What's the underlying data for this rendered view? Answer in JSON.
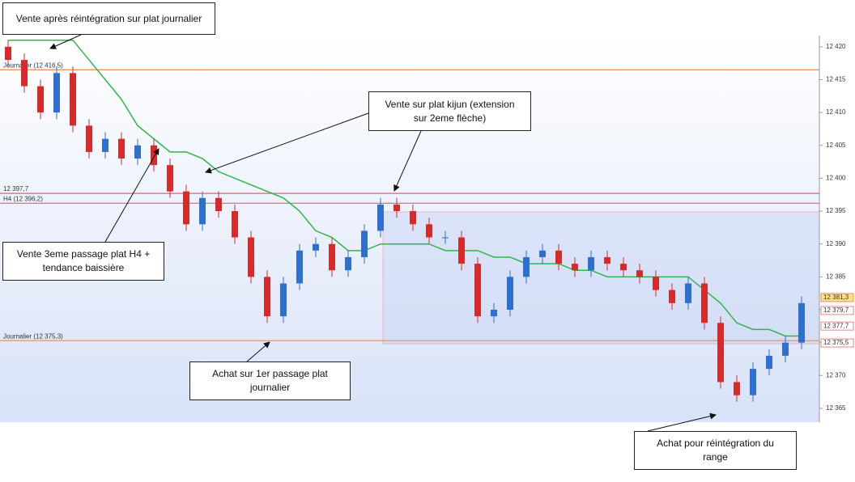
{
  "chart_data": {
    "type": "candlestick",
    "up_color": "#2f6fd0",
    "down_color": "#d62b2b",
    "ylim": [
      12362.9,
      12421.7
    ],
    "yticks": [
      {
        "value": 12365,
        "label": "12 365"
      },
      {
        "value": 12370,
        "label": "12 370"
      },
      {
        "value": 12375,
        "label": "12 375"
      },
      {
        "value": 12380,
        "label": "12 380"
      },
      {
        "value": 12385,
        "label": "12 385"
      },
      {
        "value": 12390,
        "label": "12 390"
      },
      {
        "value": 12395,
        "label": "12 395"
      },
      {
        "value": 12400,
        "label": "12 400"
      },
      {
        "value": 12405,
        "label": "12 405"
      },
      {
        "value": 12410,
        "label": "12 410"
      },
      {
        "value": 12415,
        "label": "12 415"
      },
      {
        "value": 12420,
        "label": "12 420"
      }
    ],
    "open": [
      12420,
      12418,
      12414,
      12410,
      12416,
      12408,
      12404,
      12406,
      12403,
      12405,
      12402,
      12398,
      12393,
      12397,
      12395,
      12391,
      12385,
      12379,
      12384,
      12389,
      12390,
      12386,
      12388,
      12392,
      12396,
      12395,
      12393,
      12391,
      12391,
      12387,
      12379,
      12380,
      12385,
      12388,
      12389,
      12387,
      12386,
      12388,
      12387,
      12386,
      12385,
      12383,
      12381,
      12384,
      12378,
      12369,
      12367,
      12371,
      12373,
      12375
    ],
    "high": [
      12421,
      12419,
      12415,
      12417,
      12417,
      12409,
      12407,
      12407,
      12406,
      12406,
      12403,
      12399,
      12398,
      12398,
      12396,
      12392,
      12386,
      12385,
      12390,
      12391,
      12391,
      12389,
      12393,
      12397,
      12397,
      12396,
      12394,
      12392,
      12392,
      12388,
      12381,
      12386,
      12389,
      12390,
      12390,
      12388,
      12389,
      12389,
      12388,
      12387,
      12386,
      12384,
      12385,
      12385,
      12379,
      12370,
      12372,
      12374,
      12376,
      12382
    ],
    "low": [
      12417,
      12413,
      12409,
      12409,
      12407,
      12403,
      12403,
      12402,
      12402,
      12401,
      12397,
      12392,
      12392,
      12394,
      12390,
      12384,
      12378,
      12378,
      12383,
      12388,
      12385,
      12385,
      12387,
      12391,
      12394,
      12392,
      12390,
      12390,
      12386,
      12378,
      12378,
      12379,
      12384,
      12387,
      12386,
      12385,
      12385,
      12386,
      12385,
      12384,
      12382,
      12380,
      12380,
      12377,
      12368,
      12366,
      12366,
      12370,
      12372,
      12374
    ],
    "close": [
      12418,
      12414,
      12410,
      12416,
      12408,
      12404,
      12406,
      12403,
      12405,
      12402,
      12398,
      12393,
      12397,
      12395,
      12391,
      12385,
      12379,
      12384,
      12389,
      12390,
      12386,
      12388,
      12392,
      12396,
      12395,
      12393,
      12391,
      12391,
      12387,
      12379,
      12380,
      12385,
      12388,
      12389,
      12387,
      12386,
      12388,
      12387,
      12386,
      12385,
      12383,
      12381,
      12384,
      12378,
      12369,
      12367,
      12371,
      12373,
      12375,
      12381
    ],
    "lines": [
      {
        "color": "#2db84a",
        "values": [
          12421,
          12421,
          12421,
          12421,
          12421,
          12418,
          12415,
          12412,
          12408,
          12406,
          12404,
          12404,
          12403,
          12401,
          12400,
          12399,
          12398,
          12397,
          12395,
          12392,
          12391,
          12389,
          12389,
          12390,
          12390,
          12390,
          12390,
          12389,
          12389,
          12389,
          12388,
          12388,
          12387,
          12387,
          12387,
          12386,
          12386,
          12385,
          12385,
          12385,
          12385,
          12385,
          12385,
          12383,
          12381,
          12378,
          12377,
          12377,
          12376,
          12376
        ]
      }
    ],
    "levels": [
      {
        "label": "Journalier (12 416,5)",
        "value": 12416.5,
        "color": "#f0874a"
      },
      {
        "label": "12 397,7",
        "value": 12397.7,
        "color": "#e0607a"
      },
      {
        "label": "H4 (12 396,2)",
        "value": 12396.2,
        "color": "#e0607a"
      },
      {
        "label": "Journalier (12 375,3)",
        "value": 12375.3,
        "color": "#f0874a"
      }
    ],
    "price_tags": [
      {
        "value": 12381.3,
        "label": "12 381,3"
      },
      {
        "value": 12379.7,
        "label": "12 379,7"
      },
      {
        "value": 12377.7,
        "label": "12 377,7"
      },
      {
        "value": 12375.5,
        "label": "12 375,5"
      }
    ]
  },
  "annotations": [
    {
      "lines": [
        "Vente après réintégration sur plat journalier"
      ]
    },
    {
      "lines": [
        "Vente sur plat kijun (extension",
        "sur 2eme flèche)"
      ]
    },
    {
      "lines": [
        "Vente 3eme passage plat H4 +",
        "tendance baissière"
      ]
    },
    {
      "lines": [
        "Achat sur 1er passage plat",
        "journalier"
      ]
    },
    {
      "lines": [
        "Achat pour réintégration du",
        "range"
      ]
    }
  ]
}
